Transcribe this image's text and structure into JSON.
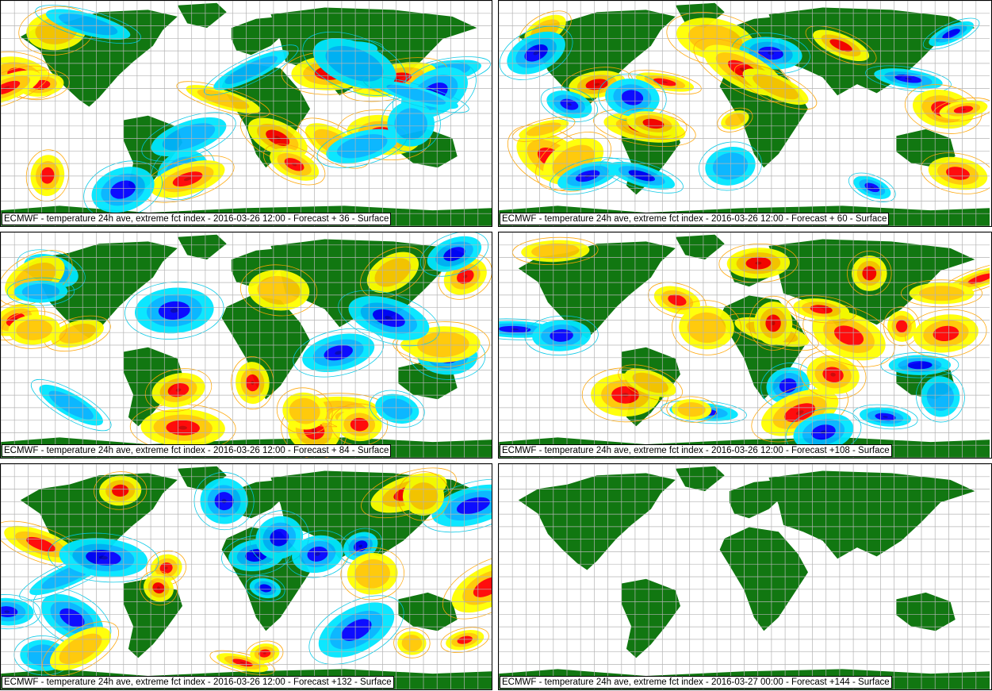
{
  "panels": [
    {
      "caption": "ECMWF - temperature 24h ave, extreme fct index - 2016-03-26 12:00 - Forecast + 36 - Surface",
      "has_field": true,
      "seed": 11
    },
    {
      "caption": "ECMWF - temperature 24h ave, extreme fct index - 2016-03-26 12:00 - Forecast + 60 - Surface",
      "has_field": true,
      "seed": 23
    },
    {
      "caption": "ECMWF - temperature 24h ave, extreme fct index - 2016-03-26 12:00 - Forecast + 84 - Surface",
      "has_field": true,
      "seed": 37
    },
    {
      "caption": "ECMWF - temperature 24h ave, extreme fct index - 2016-03-26 12:00 - Forecast +108 - Surface",
      "has_field": true,
      "seed": 41
    },
    {
      "caption": "ECMWF - temperature 24h ave, extreme fct index - 2016-03-26 12:00 - Forecast +132 - Surface",
      "has_field": true,
      "seed": 53
    },
    {
      "caption": "ECMWF - temperature 24h ave, extreme fct index - 2016-03-27 00:00 - Forecast +144 - Surface",
      "has_field": false,
      "seed": 0
    }
  ],
  "colors": {
    "land": "#117711",
    "grid": "#b4b4b4",
    "warm": [
      "#ffff00",
      "#ffc800",
      "#ff0000",
      "#c80000",
      "#8c0000"
    ],
    "cold": [
      "#c8ffff",
      "#00e6ff",
      "#00b4ff",
      "#0000ff",
      "#0000b4"
    ],
    "contour_warm": "#ffa500",
    "contour_cold": "#00c8e6"
  }
}
